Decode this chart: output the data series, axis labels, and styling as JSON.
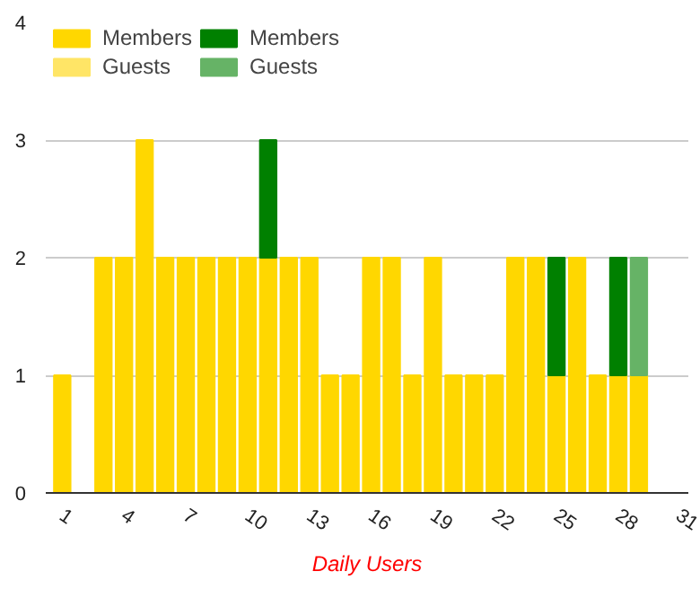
{
  "chart_data": {
    "type": "bar",
    "stacked": true,
    "xlabel": "Daily Users",
    "x": [
      1,
      2,
      3,
      4,
      5,
      6,
      7,
      8,
      9,
      10,
      11,
      12,
      13,
      14,
      15,
      16,
      17,
      18,
      19,
      20,
      21,
      22,
      23,
      24,
      25,
      26,
      27,
      28,
      29
    ],
    "series": [
      {
        "name": "Members",
        "color": "#ffd700",
        "values": [
          1,
          null,
          2,
          2,
          3,
          2,
          2,
          2,
          2,
          2,
          2,
          2,
          2,
          1,
          1,
          2,
          2,
          1,
          2,
          1,
          1,
          1,
          2,
          2,
          1,
          2,
          1,
          1,
          1
        ]
      },
      {
        "name": "Guests",
        "color": "#ffe566",
        "values": [
          null,
          null,
          null,
          null,
          null,
          null,
          null,
          null,
          null,
          null,
          null,
          null,
          null,
          null,
          null,
          null,
          null,
          null,
          null,
          null,
          null,
          null,
          null,
          null,
          null,
          null,
          null,
          null,
          null
        ]
      },
      {
        "name": "Members",
        "color": "#008000",
        "values": [
          null,
          null,
          null,
          null,
          null,
          null,
          null,
          null,
          null,
          null,
          1,
          null,
          null,
          null,
          null,
          null,
          null,
          null,
          null,
          null,
          null,
          null,
          null,
          null,
          1,
          null,
          null,
          1,
          null
        ]
      },
      {
        "name": "Guests",
        "color": "#66b366",
        "values": [
          null,
          null,
          null,
          null,
          null,
          null,
          null,
          null,
          null,
          null,
          null,
          null,
          null,
          null,
          null,
          null,
          null,
          null,
          null,
          null,
          null,
          null,
          null,
          null,
          null,
          null,
          null,
          null,
          1
        ]
      }
    ],
    "xlim": [
      0.2,
      31.4
    ],
    "xticks": [
      1,
      4,
      7,
      10,
      13,
      16,
      19,
      22,
      25,
      28,
      31
    ],
    "ylim": [
      0,
      4
    ],
    "yticks": [
      0,
      1,
      2,
      3,
      4
    ],
    "grid": "y",
    "legend": "top"
  }
}
